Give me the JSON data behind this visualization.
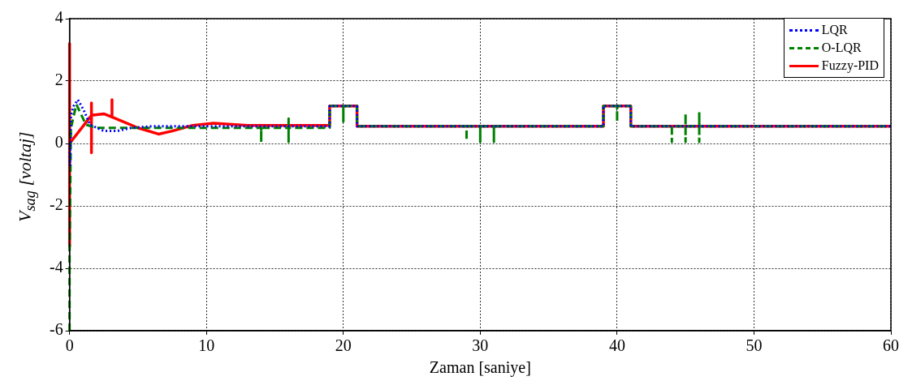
{
  "chart_data": {
    "type": "line",
    "xlabel": "Zaman [saniye]",
    "ylabel": "V$_{sag}$ [voltaj]",
    "xlim": [
      0,
      60
    ],
    "xticks": [
      0,
      10,
      20,
      30,
      40,
      50,
      60
    ],
    "ylim": [
      -6,
      4
    ],
    "yticks": [
      -6,
      -4,
      -2,
      0,
      2,
      4
    ],
    "grid": true,
    "legend": "top right",
    "marker": "none",
    "series": [
      {
        "name": "LQR",
        "color": "#0000ff",
        "line_style": "dotted",
        "x": [
          0,
          0.02,
          0.1,
          0.3,
          0.6,
          1,
          1.5,
          2.5,
          3.5,
          4.5,
          6,
          19,
          19,
          21,
          21,
          39,
          39,
          41,
          41,
          60
        ],
        "values": [
          0,
          -0.7,
          0.9,
          1.2,
          1.4,
          1.1,
          0.6,
          0.4,
          0.4,
          0.5,
          0.55,
          0.55,
          1.2,
          1.2,
          0.55,
          0.55,
          1.2,
          1.2,
          0.55,
          0.55
        ]
      },
      {
        "name": "O-LQR",
        "color": "#008000",
        "line_style": "dashed",
        "x": [
          0,
          0,
          0.1,
          0.5,
          1.2,
          2,
          14,
          14,
          14,
          16,
          16,
          16,
          16,
          19,
          19,
          20,
          20,
          20,
          21,
          21,
          29,
          29,
          29,
          30,
          30,
          30,
          31,
          31,
          31,
          39,
          39,
          40,
          40,
          40,
          41,
          41,
          44,
          44,
          44,
          45,
          45,
          45,
          45,
          46,
          46,
          46,
          46,
          60
        ],
        "values": [
          -6,
          -3.5,
          0.5,
          1.25,
          0.6,
          0.5,
          0.5,
          0.05,
          0.5,
          0.5,
          0.05,
          0.8,
          0.5,
          0.5,
          1.2,
          1.2,
          0.7,
          1.2,
          1.2,
          0.55,
          0.55,
          0.1,
          0.55,
          0.55,
          0.05,
          0.55,
          0.55,
          0.05,
          0.55,
          0.55,
          1.2,
          1.2,
          0.7,
          1.2,
          1.2,
          0.55,
          0.55,
          0.05,
          0.55,
          0.55,
          0.05,
          0.95,
          0.55,
          0.55,
          0.05,
          1.0,
          0.55,
          0.55
        ]
      },
      {
        "name": "Fuzzy-PID",
        "color": "#ff0000",
        "line_style": "solid",
        "x": [
          0,
          0,
          0,
          1.6,
          1.6,
          1.6,
          1.6,
          2.5,
          3.1,
          3.1,
          3.1,
          5,
          6.5,
          7.5,
          9,
          10.5,
          13,
          19,
          19,
          21,
          21,
          39,
          39,
          41,
          41,
          60
        ],
        "values": [
          3.2,
          -3.3,
          0,
          0.9,
          1.3,
          -0.3,
          0.9,
          0.95,
          0.85,
          1.4,
          0.85,
          0.5,
          0.3,
          0.4,
          0.58,
          0.65,
          0.58,
          0.58,
          1.2,
          1.2,
          0.55,
          0.55,
          1.2,
          1.2,
          0.55,
          0.55
        ]
      }
    ]
  }
}
